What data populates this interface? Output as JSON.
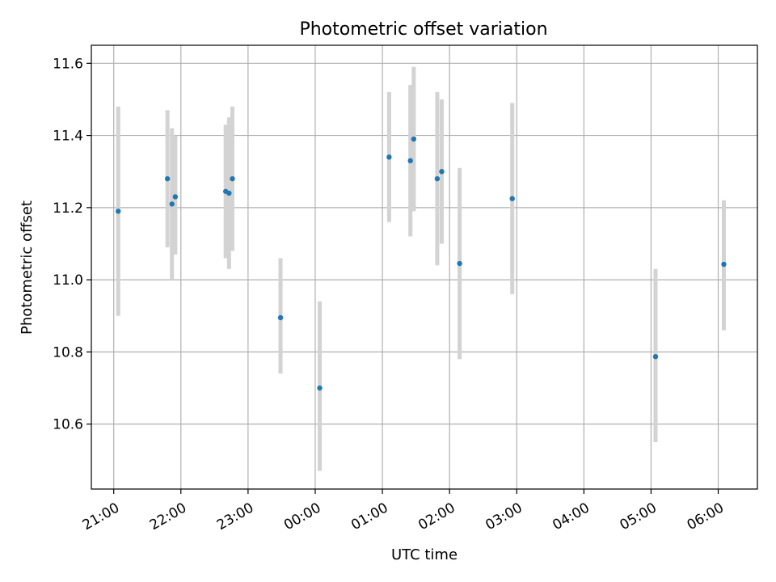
{
  "chart_data": {
    "type": "scatter",
    "title": "Photometric offset variation",
    "xlabel": "UTC time",
    "ylabel": "Photometric offset",
    "xlim": [
      "20:40",
      "06:35"
    ],
    "ylim": [
      10.42,
      11.65
    ],
    "grid": true,
    "x_ticks": [
      "21:00",
      "22:00",
      "23:00",
      "00:00",
      "01:00",
      "02:00",
      "03:00",
      "04:00",
      "05:00",
      "06:00"
    ],
    "y_ticks": [
      10.6,
      10.8,
      11.0,
      11.2,
      11.4,
      11.6
    ],
    "y_tick_labels": [
      "10.6",
      "10.8",
      "11.0",
      "11.2",
      "11.4",
      "11.6"
    ],
    "points": [
      {
        "time": "21:04",
        "y": 11.19,
        "err_low": 10.9,
        "err_high": 11.48
      },
      {
        "time": "21:48",
        "y": 11.28,
        "err_low": 11.09,
        "err_high": 11.47
      },
      {
        "time": "21:52",
        "y": 11.21,
        "err_low": 11.0,
        "err_high": 11.42
      },
      {
        "time": "21:55",
        "y": 11.23,
        "err_low": 11.07,
        "err_high": 11.4
      },
      {
        "time": "22:40",
        "y": 11.245,
        "err_low": 11.06,
        "err_high": 11.43
      },
      {
        "time": "22:43",
        "y": 11.24,
        "err_low": 11.03,
        "err_high": 11.45
      },
      {
        "time": "22:46",
        "y": 11.28,
        "err_low": 11.08,
        "err_high": 11.48
      },
      {
        "time": "23:29",
        "y": 10.895,
        "err_low": 10.74,
        "err_high": 11.06
      },
      {
        "time": "00:04",
        "y": 10.7,
        "err_low": 10.47,
        "err_high": 10.94
      },
      {
        "time": "01:06",
        "y": 11.34,
        "err_low": 11.16,
        "err_high": 11.52
      },
      {
        "time": "01:25",
        "y": 11.33,
        "err_low": 11.12,
        "err_high": 11.54
      },
      {
        "time": "01:28",
        "y": 11.39,
        "err_low": 11.19,
        "err_high": 11.59
      },
      {
        "time": "01:49",
        "y": 11.28,
        "err_low": 11.04,
        "err_high": 11.52
      },
      {
        "time": "01:53",
        "y": 11.3,
        "err_low": 11.1,
        "err_high": 11.5
      },
      {
        "time": "02:09",
        "y": 11.045,
        "err_low": 10.78,
        "err_high": 11.31
      },
      {
        "time": "02:56",
        "y": 11.225,
        "err_low": 10.96,
        "err_high": 11.49
      },
      {
        "time": "05:04",
        "y": 10.787,
        "err_low": 10.55,
        "err_high": 11.03
      },
      {
        "time": "06:05",
        "y": 11.043,
        "err_low": 10.86,
        "err_high": 11.22
      }
    ],
    "colors": {
      "marker": "#1f77b4",
      "errorbar": "#d3d3d3",
      "grid": "#b0b0b0",
      "axes": "#000000"
    }
  }
}
